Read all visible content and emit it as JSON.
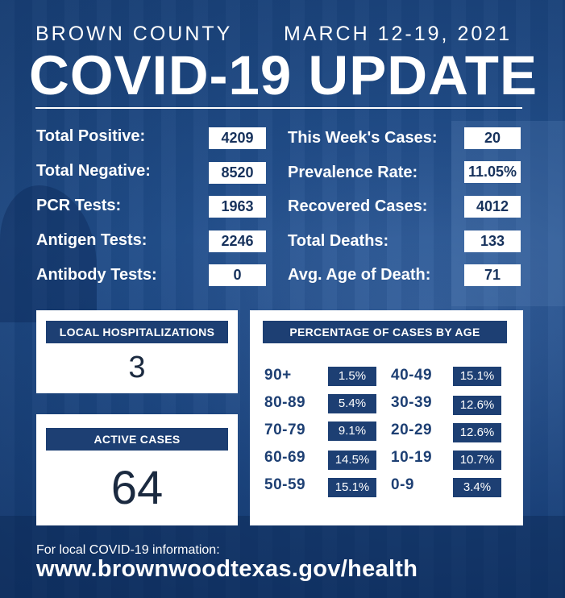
{
  "header": {
    "county": "BROWN COUNTY",
    "date_range": "MARCH 12-19, 2021",
    "title": "COVID-19 UPDATE"
  },
  "stats_left": [
    {
      "label": "Total Positive:",
      "value": "4209"
    },
    {
      "label": "Total Negative:",
      "value": "8520"
    },
    {
      "label": "PCR Tests:",
      "value": "1963"
    },
    {
      "label": "Antigen Tests:",
      "value": "2246"
    },
    {
      "label": "Antibody Tests:",
      "value": "0"
    }
  ],
  "stats_right": [
    {
      "label": "This Week's Cases:",
      "value": "20"
    },
    {
      "label": "Prevalence Rate:",
      "value": "11.05%"
    },
    {
      "label": "Recovered Cases:",
      "value": "4012"
    },
    {
      "label": "Total Deaths:",
      "value": "133"
    },
    {
      "label": "Avg. Age of Death:",
      "value": "71"
    }
  ],
  "hospitalizations": {
    "label": "LOCAL HOSPITALIZATIONS",
    "value": "3"
  },
  "active_cases": {
    "label": "ACTIVE CASES",
    "value": "64"
  },
  "age_breakdown": {
    "title": "PERCENTAGE OF CASES BY AGE",
    "left": [
      {
        "group": "90+",
        "pct": "1.5%"
      },
      {
        "group": "80-89",
        "pct": "5.4%"
      },
      {
        "group": "70-79",
        "pct": "9.1%"
      },
      {
        "group": "60-69",
        "pct": "14.5%"
      },
      {
        "group": "50-59",
        "pct": "15.1%"
      }
    ],
    "right": [
      {
        "group": "40-49",
        "pct": "15.1%"
      },
      {
        "group": "30-39",
        "pct": "12.6%"
      },
      {
        "group": "20-29",
        "pct": "12.6%"
      },
      {
        "group": "10-19",
        "pct": "10.7%"
      },
      {
        "group": "0-9",
        "pct": "3.4%"
      }
    ]
  },
  "footer": {
    "info": "For local COVID-19 information:",
    "url": "www.brownwoodtexas.gov/health"
  }
}
